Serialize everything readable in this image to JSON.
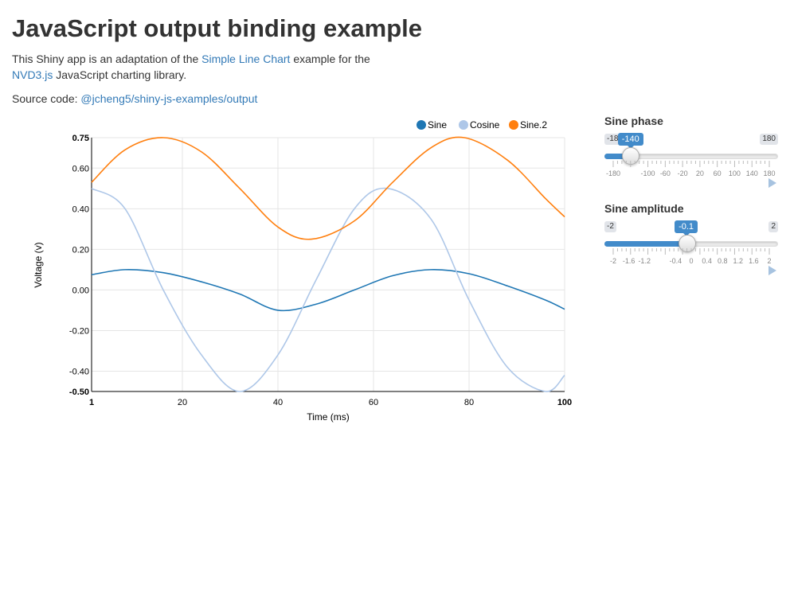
{
  "header": {
    "title": "JavaScript output binding example",
    "intro_1": "This Shiny app is an adaptation of the ",
    "intro_link_1": "Simple Line Chart",
    "intro_2": " example for the ",
    "intro_link_2": "NVD3.js",
    "intro_3": " JavaScript charting library.",
    "source_prefix": "Source code: ",
    "source_link": "@jcheng5/shiny-js-examples/output"
  },
  "colors": {
    "accent": "#428bca",
    "link": "#337ab7",
    "sine": "#1f77b4",
    "cosine": "#aec7e8",
    "sine2": "#ff7f0e"
  },
  "chart_data": {
    "type": "line",
    "title": "",
    "xlabel": "Time (ms)",
    "ylabel": "Voltage (v)",
    "xlim": [
      1,
      100
    ],
    "ylim": [
      -0.5,
      0.75
    ],
    "x_ticks": [
      "1",
      "20",
      "40",
      "60",
      "80",
      "100"
    ],
    "x_tick_values": [
      1,
      20,
      40,
      60,
      80,
      100
    ],
    "y_ticks": [
      "0.75",
      "0.60",
      "0.40",
      "0.20",
      "0.00",
      "-0.20",
      "-0.40",
      "-0.50"
    ],
    "y_tick_values": [
      0.75,
      0.6,
      0.4,
      0.2,
      0.0,
      -0.2,
      -0.4,
      -0.5
    ],
    "grid": true,
    "legend_position": "top-right",
    "series": [
      {
        "name": "Sine",
        "color": "#1f77b4",
        "x": [
          1,
          8,
          16,
          24,
          32,
          40,
          48,
          56,
          64,
          72,
          80,
          88,
          96,
          100
        ],
        "y": [
          0.075,
          0.1,
          0.085,
          0.04,
          -0.02,
          -0.1,
          -0.07,
          0.0,
          0.07,
          0.1,
          0.08,
          0.02,
          -0.05,
          -0.095
        ]
      },
      {
        "name": "Cosine",
        "color": "#aec7e8",
        "x": [
          1,
          8,
          16,
          24,
          32,
          40,
          48,
          56,
          63,
          72,
          80,
          88,
          96,
          100
        ],
        "y": [
          0.5,
          0.4,
          0.0,
          -0.32,
          -0.5,
          -0.32,
          0.05,
          0.4,
          0.5,
          0.35,
          -0.05,
          -0.38,
          -0.5,
          -0.42
        ]
      },
      {
        "name": "Sine.2",
        "color": "#ff7f0e",
        "x": [
          1,
          8,
          16,
          24,
          32,
          40,
          47,
          56,
          64,
          72,
          79,
          88,
          96,
          100
        ],
        "y": [
          0.53,
          0.69,
          0.75,
          0.68,
          0.5,
          0.31,
          0.25,
          0.34,
          0.53,
          0.7,
          0.75,
          0.64,
          0.45,
          0.36
        ]
      }
    ]
  },
  "controls": {
    "phase": {
      "label": "Sine phase",
      "min": -180,
      "max": 180,
      "value": -140,
      "min_label": "-180",
      "max_label": "180",
      "value_label": "-140",
      "grid_labels": [
        "-180",
        "-100",
        "-60",
        "-20",
        "20",
        "60",
        "100",
        "140",
        "180"
      ],
      "grid_values": [
        -180,
        -100,
        -60,
        -20,
        20,
        60,
        100,
        140,
        180
      ]
    },
    "amplitude": {
      "label": "Sine amplitude",
      "min": -2,
      "max": 2,
      "value": -0.1,
      "min_label": "-2",
      "max_label": "2",
      "value_label": "-0.1",
      "grid_labels": [
        "-2",
        "-1.6",
        "-1.2",
        "-0.4",
        "0",
        "0.4",
        "0.8",
        "1.2",
        "1.6",
        "2"
      ],
      "grid_values": [
        -2,
        -1.6,
        -1.2,
        -0.4,
        0,
        0.4,
        0.8,
        1.2,
        1.6,
        2
      ]
    }
  }
}
